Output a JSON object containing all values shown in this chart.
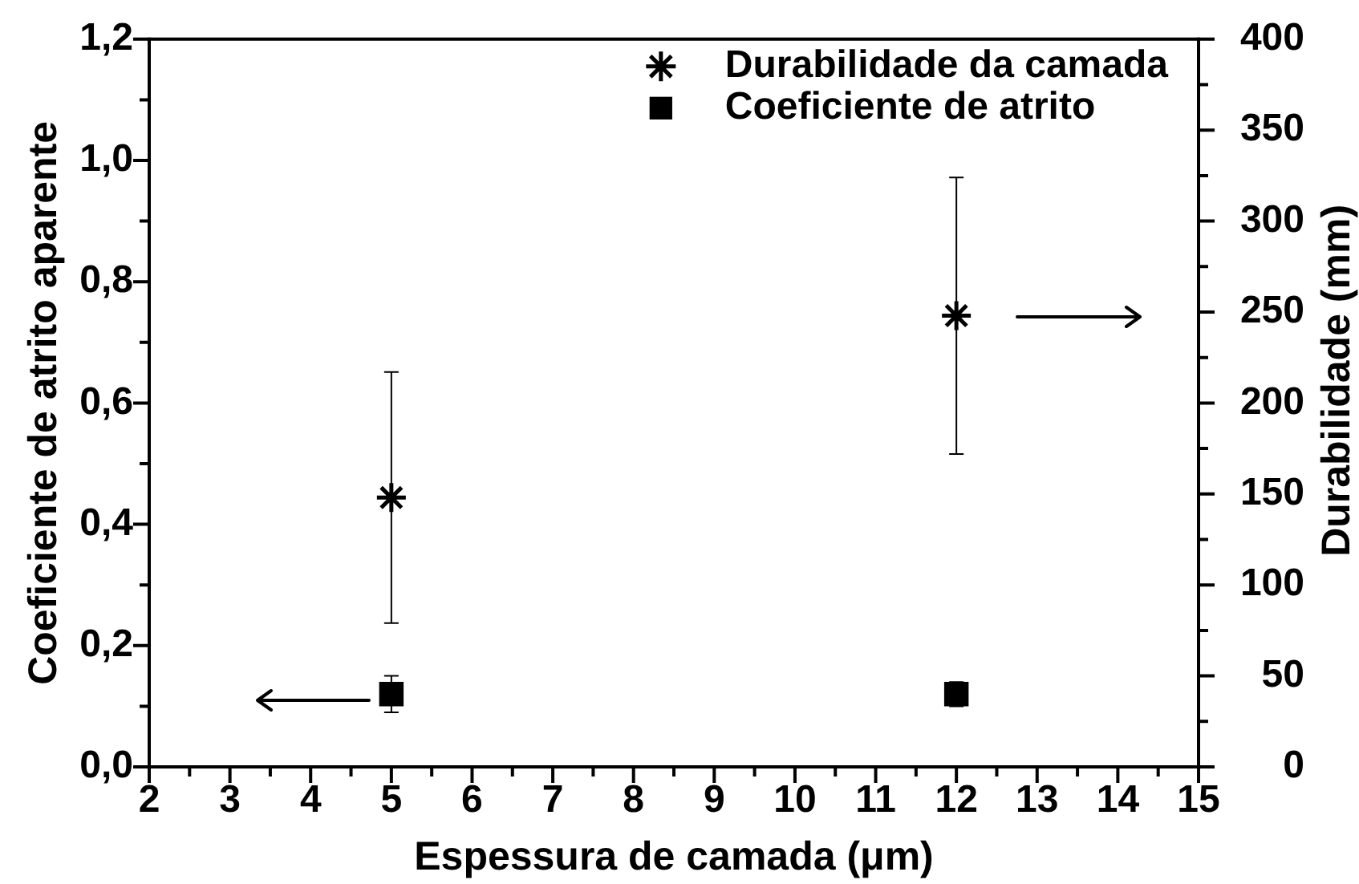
{
  "chart_data": {
    "type": "scatter",
    "xlabel": "Espessura de camada (μm)",
    "ylabel": "Coeficiente de atrito aparente",
    "y2label": "Durabilidade (mm)",
    "x": [
      5,
      12
    ],
    "series": [
      {
        "name": "Durabilidade da camada",
        "color": "#000000",
        "marker": "cross",
        "axis": "y2",
        "values": [
          148,
          248
        ],
        "errors": [
          69,
          76
        ]
      },
      {
        "name": "Coeficiente de atrito",
        "color": "#000000",
        "marker": "square",
        "values": [
          0.12,
          0.12
        ],
        "errors": [
          0.03,
          0.02
        ]
      }
    ],
    "xlim": [
      2,
      15
    ],
    "xticks": [
      2,
      {
        "value": 2.5,
        "label": null
      },
      3,
      {
        "value": 3.5,
        "label": null
      },
      4,
      {
        "value": 4.5,
        "label": null
      },
      5,
      {
        "value": 5.5,
        "label": null
      },
      6,
      {
        "value": 6.5,
        "label": null
      },
      7,
      {
        "value": 7.5,
        "label": null
      },
      8,
      {
        "value": 8.5,
        "label": null
      },
      9,
      {
        "value": 9.5,
        "label": null
      },
      10,
      {
        "value": 10.5,
        "label": null
      },
      11,
      {
        "value": 11.5,
        "label": null
      },
      12,
      {
        "value": 12.5,
        "label": null
      },
      13,
      {
        "value": 13.5,
        "label": null
      },
      14,
      {
        "value": 14.5,
        "label": null
      },
      15
    ],
    "ylim": [
      0,
      1.2
    ],
    "yticks": [
      {
        "value": 0,
        "label": "0,0"
      },
      {
        "value": 0.1,
        "label": null
      },
      {
        "value": 0.2,
        "label": "0,2"
      },
      {
        "value": 0.3,
        "label": null
      },
      {
        "value": 0.4,
        "label": "0,4"
      },
      {
        "value": 0.5,
        "label": null
      },
      {
        "value": 0.6,
        "label": "0,6"
      },
      {
        "value": 0.7,
        "label": null
      },
      {
        "value": 0.8,
        "label": "0,8"
      },
      {
        "value": 0.9,
        "label": null
      },
      {
        "value": 1.0,
        "label": "1,0"
      },
      {
        "value": 1.1,
        "label": null
      },
      {
        "value": 1.2,
        "label": "1,2"
      }
    ],
    "y2lim": [
      0,
      400
    ],
    "y2ticks": [
      0,
      {
        "value": 25,
        "label": null
      },
      50,
      {
        "value": 75,
        "label": null
      },
      100,
      {
        "value": 125,
        "label": null
      },
      150,
      {
        "value": 175,
        "label": null
      },
      200,
      {
        "value": 225,
        "label": null
      },
      250,
      {
        "value": 275,
        "label": null
      },
      300,
      {
        "value": 325,
        "label": null
      },
      350,
      {
        "value": 375,
        "label": null
      },
      400
    ],
    "legend": "top right"
  }
}
